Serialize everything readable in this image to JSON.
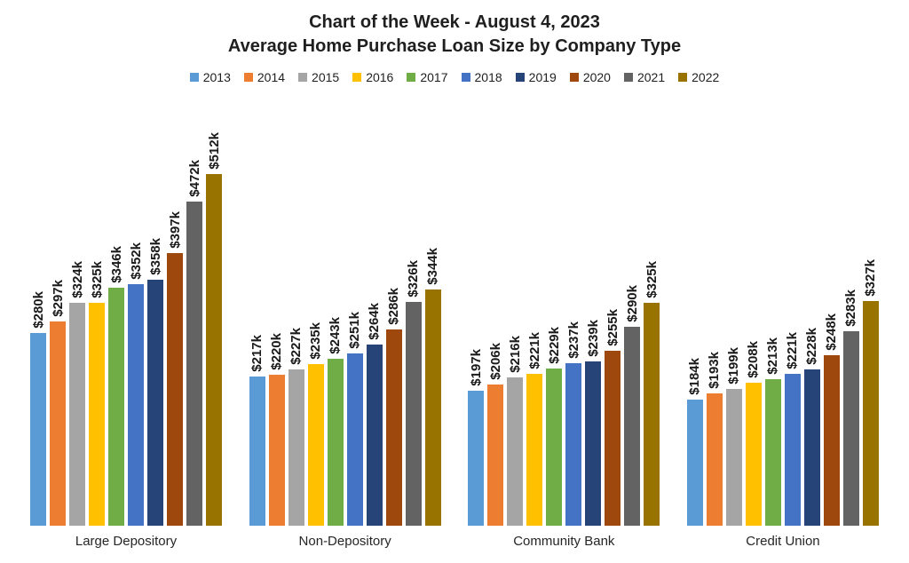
{
  "title": {
    "line1": "Chart of the Week - August 4, 2023",
    "line2": "Average Home Purchase Loan Size by Company Type"
  },
  "chart_data": {
    "type": "bar",
    "title": "Chart of the Week - August 4, 2023",
    "subtitle": "Average Home Purchase Loan Size by Company Type",
    "categories": [
      "Large Depository",
      "Non-Depository",
      "Community Bank",
      "Credit Union"
    ],
    "series": [
      {
        "name": "2013",
        "color": "#5B9BD5",
        "values": [
          280,
          217,
          197,
          184
        ]
      },
      {
        "name": "2014",
        "color": "#ED7D31",
        "values": [
          297,
          220,
          206,
          193
        ]
      },
      {
        "name": "2015",
        "color": "#A5A5A5",
        "values": [
          324,
          227,
          216,
          199
        ]
      },
      {
        "name": "2016",
        "color": "#FFC000",
        "values": [
          325,
          235,
          221,
          208
        ]
      },
      {
        "name": "2017",
        "color": "#70AD47",
        "values": [
          346,
          243,
          229,
          213
        ]
      },
      {
        "name": "2018",
        "color": "#4472C4",
        "values": [
          352,
          251,
          237,
          221
        ]
      },
      {
        "name": "2019",
        "color": "#264478",
        "values": [
          358,
          264,
          239,
          228
        ]
      },
      {
        "name": "2020",
        "color": "#9E480E",
        "values": [
          397,
          286,
          255,
          248
        ]
      },
      {
        "name": "2021",
        "color": "#636363",
        "values": [
          472,
          326,
          290,
          283
        ]
      },
      {
        "name": "2022",
        "color": "#997300",
        "values": [
          512,
          344,
          325,
          327
        ]
      }
    ],
    "value_label_prefix": "$",
    "value_label_suffix": "k",
    "value_labels": {
      "Large Depository": [
        "$280k",
        "$297k",
        "$324k",
        "$325k",
        "$346k",
        "$352k",
        "$358k",
        "$397k",
        "$472k",
        "$512k"
      ],
      "Non-Depository": [
        "$217k",
        "$220k",
        "$227k",
        "$235k",
        "$243k",
        "$251k",
        "$264k",
        "$286k",
        "$326k",
        "$344k"
      ],
      "Community Bank": [
        "$197k",
        "$206k",
        "$216k",
        "$221k",
        "$229k",
        "$237k",
        "$239k",
        "$255k",
        "$290k",
        "$325k"
      ],
      "Credit Union": [
        "$184k",
        "$193k",
        "$199k",
        "$208k",
        "$213k",
        "$221k",
        "$228k",
        "$248k",
        "$283k",
        "$327k"
      ]
    },
    "legend_entries": [
      "2013",
      "2014",
      "2015",
      "2016",
      "2017",
      "2018",
      "2019",
      "2020",
      "2021",
      "2022"
    ],
    "legend_position": "top",
    "grid": false,
    "axes_visible": false,
    "ylim": [
      0,
      512
    ]
  }
}
